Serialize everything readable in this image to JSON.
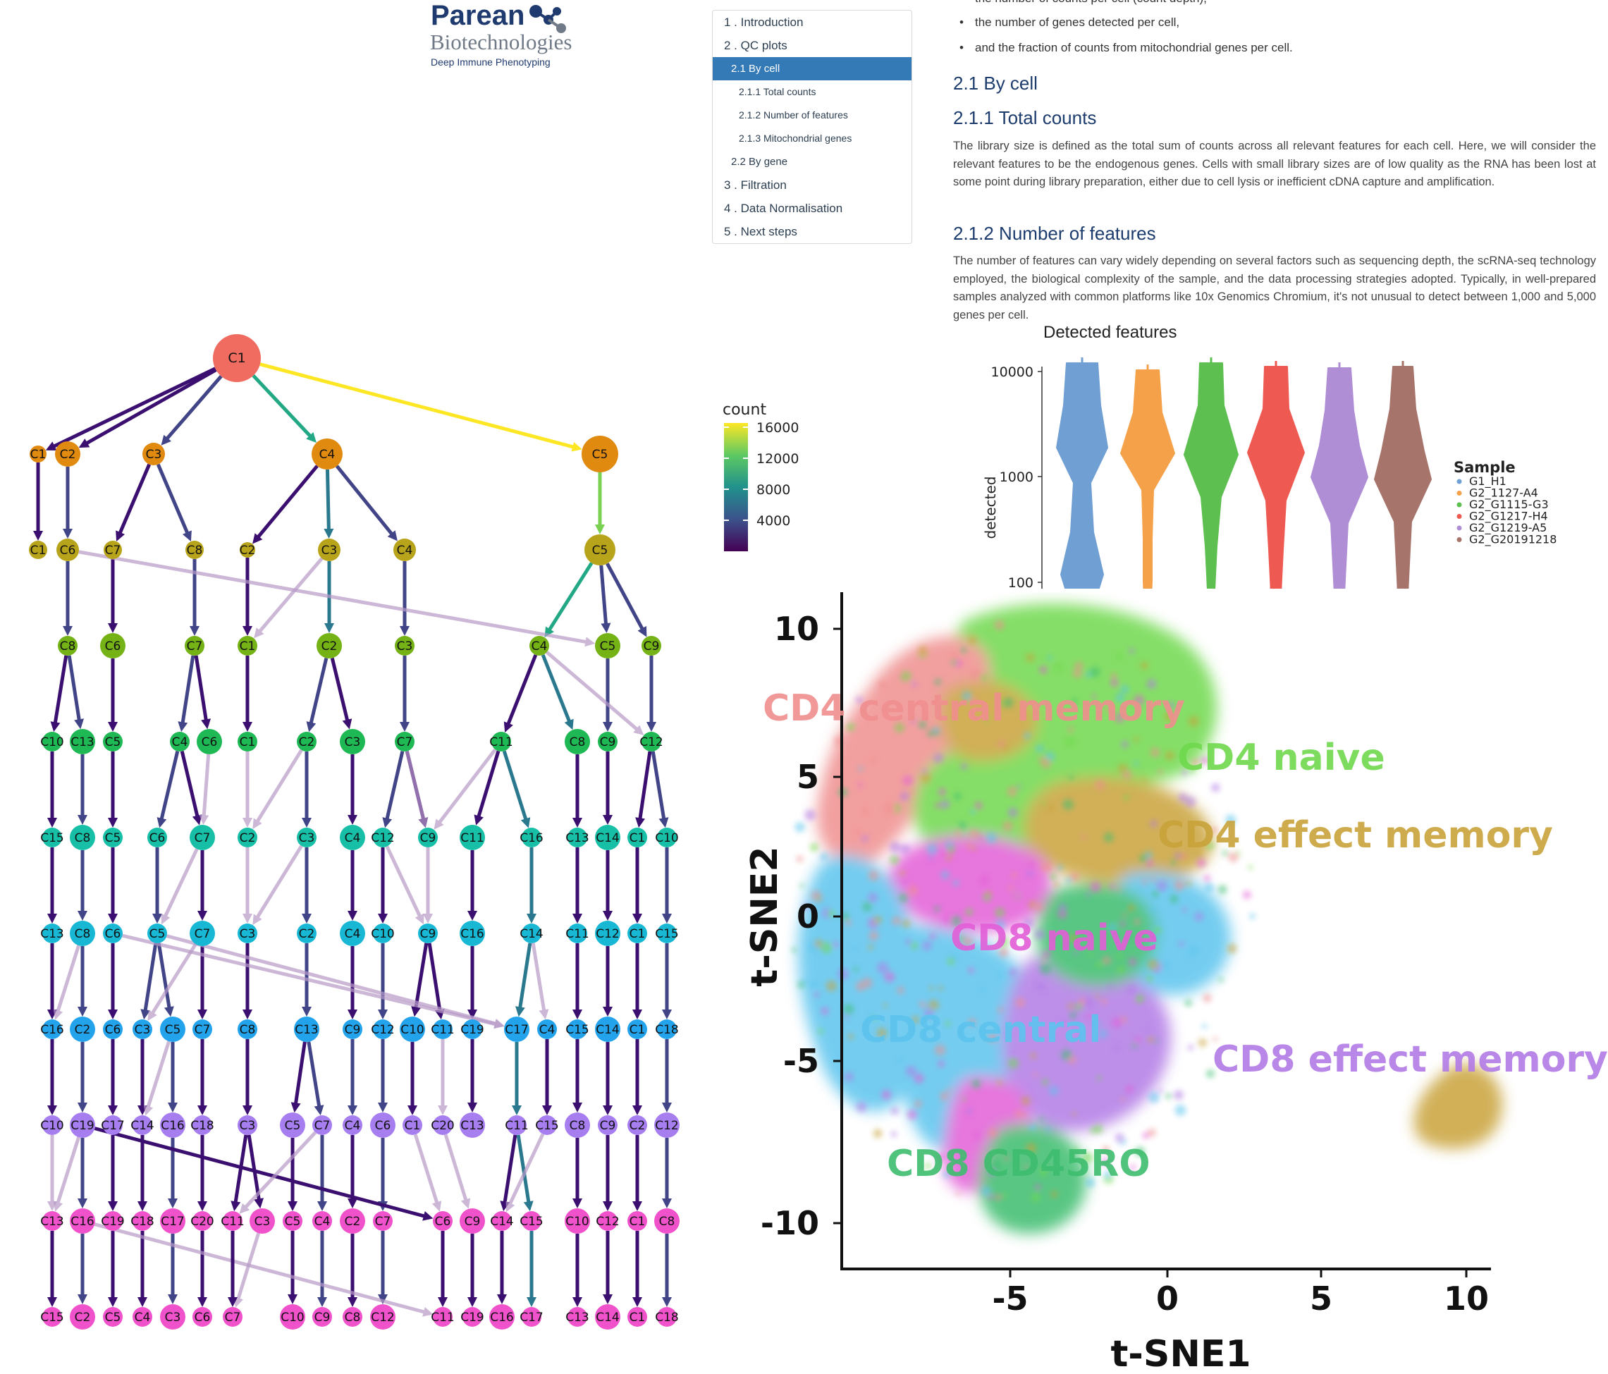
{
  "logo": {
    "wordmark": "Parean",
    "subtitle": "Biotechnologies",
    "tagline": "Deep Immune Phenotyping",
    "mark_icon": "molecule-dots-icon",
    "colors": {
      "primary": "#1f3a6e",
      "secondary": "#707a86"
    }
  },
  "toc": {
    "items": [
      {
        "label": "1 . Introduction",
        "level": 1,
        "active": false
      },
      {
        "label": "2 . QC plots",
        "level": 1,
        "active": false
      },
      {
        "label": "2.1 By cell",
        "level": 2,
        "active": true
      },
      {
        "label": "2.1.1 Total counts",
        "level": 3,
        "active": false
      },
      {
        "label": "2.1.2 Number of features",
        "level": 3,
        "active": false
      },
      {
        "label": "2.1.3 Mitochondrial genes",
        "level": 3,
        "active": false
      },
      {
        "label": "2.2 By gene",
        "level": 2,
        "active": false
      },
      {
        "label": "3 . Filtration",
        "level": 1,
        "active": false
      },
      {
        "label": "4 . Data Normalisation",
        "level": 1,
        "active": false
      },
      {
        "label": "5 . Next steps",
        "level": 1,
        "active": false
      }
    ],
    "active_color": "#337ab7"
  },
  "document": {
    "bullets": [
      "the number of counts per cell (count depth),",
      "the number of genes detected per cell,",
      "and the fraction of counts from mitochondrial genes per cell."
    ],
    "heading_by_cell": "2.1 By cell",
    "heading_total_counts": "2.1.1 Total counts",
    "para_total_counts": "The library size is defined as the total sum of counts across all relevant features for each cell. Here, we will consider the relevant features to be the endogenous genes. Cells with small library sizes are of low quality as the RNA has been lost at some point during library preparation, either due to cell lysis or inefficient cDNA capture and amplification.",
    "heading_features": "2.1.2 Number of features",
    "para_features": "The number of features can vary widely depending on several factors such as sequencing depth, the scRNA-seq technology employed, the biological complexity of the sample, and the data processing strategies adopted. Typically, in well-prepared samples analyzed with common platforms like 10x Genomics Chromium, it's not unusual to detect between 1,000 and 5,000 genes per cell."
  },
  "chart_data": [
    {
      "type": "diagram",
      "description_kind": "clustree",
      "legend": {
        "title": "count",
        "ticks": [
          "16000",
          "12000",
          "8000",
          "4000"
        ],
        "range": [
          0,
          16000
        ]
      },
      "levels": [
        [
          "C1"
        ],
        [
          "C1",
          "C2",
          "C3",
          "C4",
          "C5"
        ],
        [
          "C1",
          "C6",
          "C7",
          "C8",
          "C2",
          "C3",
          "C4",
          "C5"
        ],
        [
          "C8",
          "C6",
          "C7",
          "C1",
          "C2",
          "C3",
          "C4",
          "C5",
          "C9"
        ],
        [
          "C10",
          "C13",
          "C5",
          "C4",
          "C6",
          "C1",
          "C2",
          "C3",
          "C7",
          "C11",
          "C8",
          "C9",
          "C12"
        ],
        [
          "C15",
          "C8",
          "C5",
          "C6",
          "C7",
          "C2",
          "C3",
          "C4",
          "C12",
          "C9",
          "C11",
          "C16",
          "C13",
          "C14",
          "C1",
          "C10"
        ],
        [
          "C13",
          "C8",
          "C6",
          "C5",
          "C7",
          "C3",
          "C2",
          "C4",
          "C10",
          "C9",
          "C16",
          "C14",
          "C11",
          "C12",
          "C1",
          "C15"
        ],
        [
          "C16",
          "C2",
          "C6",
          "C3",
          "C5",
          "C7",
          "C8",
          "C13",
          "C9",
          "C12",
          "C10",
          "C11",
          "C19",
          "C17",
          "C4",
          "C15",
          "C14",
          "C1",
          "C18"
        ],
        [
          "C10",
          "C19",
          "C17",
          "C14",
          "C16",
          "C18",
          "C3",
          "C5",
          "C7",
          "C4",
          "C6",
          "C1",
          "C20",
          "C13",
          "C11",
          "C15",
          "C8",
          "C9",
          "C2",
          "C12"
        ],
        [
          "C13",
          "C16",
          "C19",
          "C18",
          "C17",
          "C20",
          "C11",
          "C3",
          "C5",
          "C4",
          "C2",
          "C7",
          "C6",
          "C9",
          "C14",
          "C15",
          "C10",
          "C12",
          "C1",
          "C8"
        ],
        [
          "C15",
          "C2",
          "C5",
          "C4",
          "C3",
          "C6",
          "C7",
          "C10",
          "C9",
          "C8",
          "C12",
          "C11",
          "C19",
          "C16",
          "C17",
          "C13",
          "C14",
          "C1",
          "C18"
        ]
      ]
    },
    {
      "type": "violin",
      "title": "Detected features",
      "ylabel": "detected",
      "yscale": "log",
      "yticks": [
        "10000",
        "1000",
        "100"
      ],
      "legend_title": "Sample",
      "series": [
        {
          "name": "G1_H1",
          "color": "#6f9fd3"
        },
        {
          "name": "G2_1127-A4",
          "color": "#f5a14a"
        },
        {
          "name": "G2_G1115-G3",
          "color": "#5cbf4f"
        },
        {
          "name": "G2_G1217-H4",
          "color": "#ee5a52"
        },
        {
          "name": "G2_G1219-A5",
          "color": "#b08ed6"
        },
        {
          "name": "G2_G20191218",
          "color": "#a6746b"
        }
      ]
    },
    {
      "type": "scatter",
      "xlabel": "t-SNE1",
      "ylabel": "t-SNE2",
      "xticks": [
        "-5",
        "0",
        "5",
        "10"
      ],
      "yticks": [
        "10",
        "5",
        "0",
        "-5",
        "-10"
      ],
      "xlim": [
        -10,
        11
      ],
      "ylim": [
        -11.5,
        11
      ],
      "clusters": [
        {
          "label": "CD4 central memory",
          "color": "#f08f8f"
        },
        {
          "label": "CD4 naive",
          "color": "#6fd94d"
        },
        {
          "label": "CD4 effect memory",
          "color": "#c9a33a"
        },
        {
          "label": "CD8 naive",
          "color": "#e35ed8"
        },
        {
          "label": "CD8 central",
          "color": "#5cc4ee"
        },
        {
          "label": "CD8 effect memory",
          "color": "#b27be6"
        },
        {
          "label": "CD8 CD45RO",
          "color": "#3ebd6e"
        }
      ]
    }
  ]
}
